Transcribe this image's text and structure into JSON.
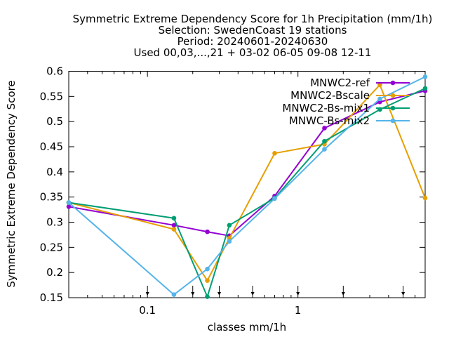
{
  "chart_data": {
    "type": "line",
    "title_lines": [
      "Symmetric Extreme Dependency Score  for 1h Precipitation (mm/1h)",
      "Selection: SwedenCoast     19 stations",
      "Period: 20240601-20240630",
      "Used 00,03,...,21 + 03-02 06-05 09-08 12-11"
    ],
    "xlabel": "classes mm/1h",
    "ylabel": "Symmetric Extreme Dependency Score",
    "x_scale": "log",
    "xlim": [
      0.03,
      7
    ],
    "ylim": [
      0.15,
      0.6
    ],
    "y_ticks": [
      "0.15",
      "0.2",
      "0.25",
      "0.3",
      "0.35",
      "0.4",
      "0.45",
      "0.5",
      "0.55",
      "0.6"
    ],
    "x_ticks": [
      {
        "value": 0.1,
        "label": "0.1"
      },
      {
        "value": 1,
        "label": "1"
      }
    ],
    "minor_x_ticks": [
      0.04,
      0.05,
      0.06,
      0.07,
      0.08,
      0.09,
      0.2,
      0.3,
      0.4,
      0.5,
      0.6,
      0.7,
      0.8,
      0.9,
      2,
      3,
      4,
      5,
      6,
      7
    ],
    "threshold_arrows": [
      0.1,
      0.2,
      0.3,
      0.5,
      1,
      2,
      5,
      10
    ],
    "grid": false,
    "legend_position": "top-right",
    "series": [
      {
        "name": "MNWC2-ref",
        "color": "#9400d3",
        "marker": "circle",
        "x": [
          0.03,
          0.15,
          0.25,
          0.35,
          0.7,
          1.5,
          3.5,
          7
        ],
        "y": [
          0.331,
          0.294,
          0.281,
          0.273,
          0.352,
          0.487,
          0.539,
          0.561
        ]
      },
      {
        "name": "MNWC2-Bscale",
        "color": "#e69f00",
        "marker": "circle",
        "x": [
          0.03,
          0.15,
          0.25,
          0.35,
          0.7,
          1.5,
          3.5,
          7
        ],
        "y": [
          0.339,
          0.286,
          0.184,
          0.268,
          0.437,
          0.455,
          0.573,
          0.348
        ]
      },
      {
        "name": "MNWC2-Bs-mix1",
        "color": "#009e73",
        "marker": "circle",
        "x": [
          0.03,
          0.15,
          0.25,
          0.35,
          0.7,
          1.5,
          3.5,
          7
        ],
        "y": [
          0.339,
          0.308,
          0.152,
          0.294,
          0.348,
          0.461,
          0.524,
          0.566
        ]
      },
      {
        "name": "MNWC-Bs-mix2",
        "color": "#56b4e9",
        "marker": "circle",
        "x": [
          0.03,
          0.15,
          0.25,
          0.35,
          0.7,
          1.5,
          3.5,
          7
        ],
        "y": [
          0.339,
          0.156,
          0.207,
          0.262,
          0.347,
          0.445,
          0.545,
          0.589
        ]
      }
    ]
  }
}
